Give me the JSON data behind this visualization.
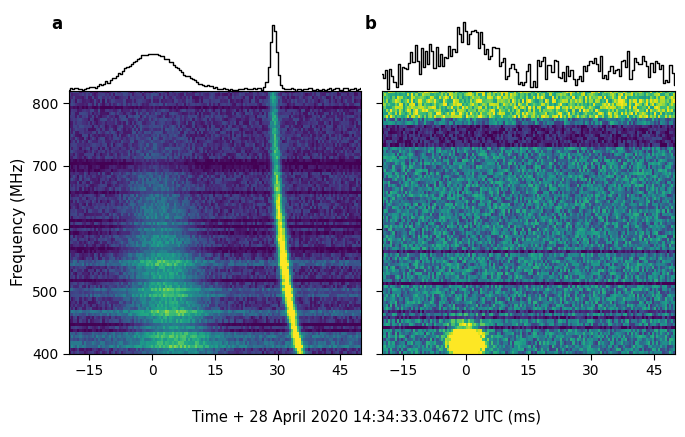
{
  "xlabel": "Time + 28 April 2020 14:34:33.04672 UTC (ms)",
  "ylabel": "Frequency (MHz)",
  "freq_min": 400,
  "freq_max": 820,
  "time_min": -20,
  "time_max": 50,
  "time_ticks": [
    -15,
    0,
    15,
    30,
    45
  ],
  "freq_ticks": [
    400,
    500,
    600,
    700,
    800
  ],
  "label_a": "a",
  "label_b": "b",
  "colormap": "viridis",
  "background": "#ffffff",
  "n_time": 140,
  "n_freq": 84,
  "seed_a": 7,
  "seed_b": 99
}
